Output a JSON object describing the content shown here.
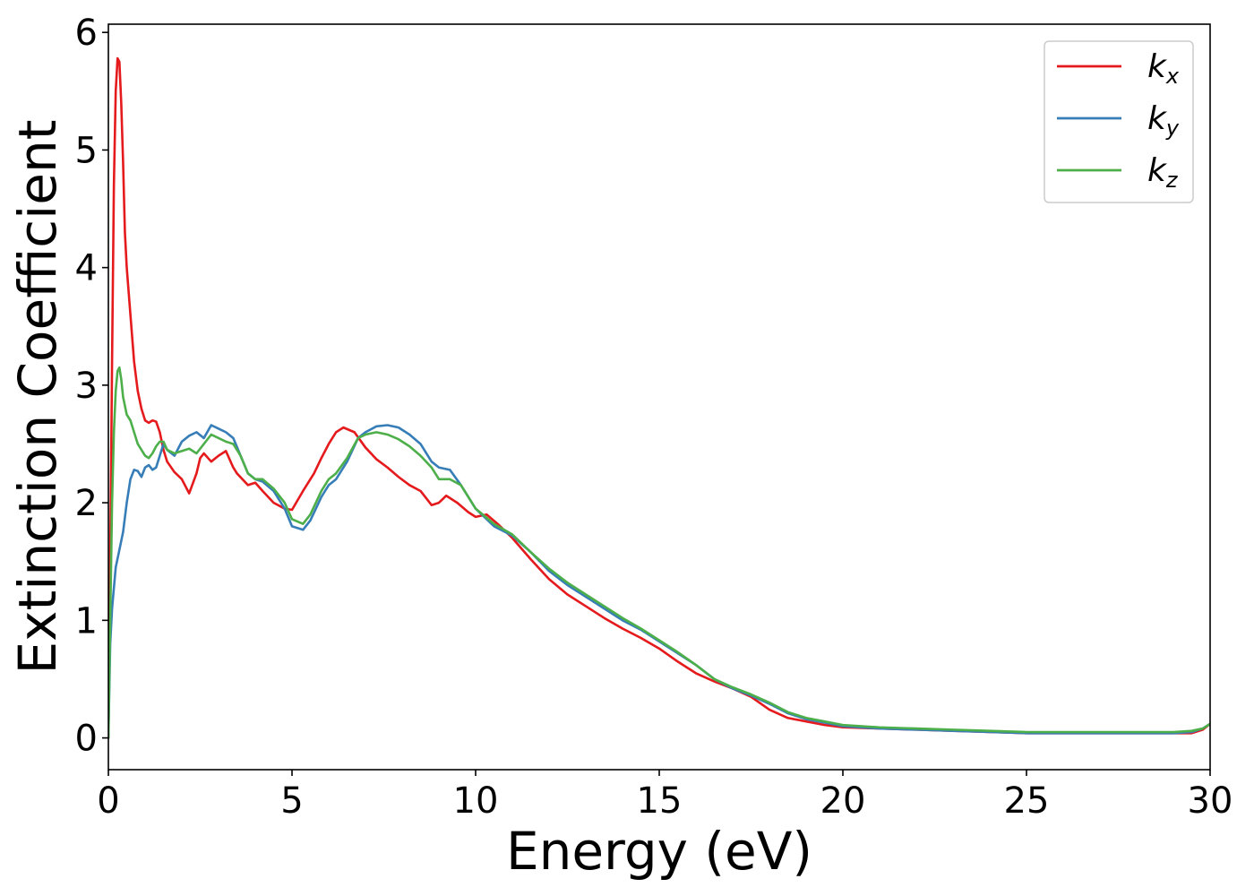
{
  "chart_data": {
    "type": "line",
    "title": "",
    "xlabel": "Energy (eV)",
    "ylabel": "Extinction Coefficient",
    "xlim": [
      0,
      30
    ],
    "ylim": [
      -0.27,
      6.07
    ],
    "xticks": [
      0,
      5,
      10,
      15,
      20,
      25,
      30
    ],
    "yticks": [
      0,
      1,
      2,
      3,
      4,
      5,
      6
    ],
    "grid": false,
    "legend_position": "top-right",
    "series": [
      {
        "name": "k",
        "subscript": "x",
        "color": "#e41a1c",
        "x": [
          0,
          0.05,
          0.1,
          0.15,
          0.2,
          0.25,
          0.3,
          0.35,
          0.4,
          0.45,
          0.5,
          0.6,
          0.7,
          0.8,
          0.9,
          1.0,
          1.1,
          1.2,
          1.3,
          1.4,
          1.5,
          1.6,
          1.8,
          2.0,
          2.2,
          2.4,
          2.5,
          2.6,
          2.8,
          3.0,
          3.2,
          3.4,
          3.5,
          3.8,
          4.0,
          4.2,
          4.5,
          4.8,
          5.0,
          5.3,
          5.6,
          5.8,
          6.0,
          6.2,
          6.4,
          6.7,
          7.0,
          7.3,
          7.6,
          7.9,
          8.2,
          8.5,
          8.8,
          9.0,
          9.2,
          9.5,
          9.8,
          10.0,
          10.3,
          10.6,
          11.0,
          11.5,
          12.0,
          12.5,
          13.0,
          13.5,
          14.0,
          14.5,
          15.0,
          15.5,
          16.0,
          16.5,
          17.0,
          17.5,
          18.0,
          18.5,
          19.0,
          19.5,
          20.0,
          21.0,
          22.0,
          23.0,
          24.0,
          25.0,
          26.0,
          27.0,
          28.0,
          29.0,
          29.5,
          29.8,
          30.0
        ],
        "y": [
          0.0,
          1.5,
          3.2,
          4.7,
          5.5,
          5.78,
          5.75,
          5.4,
          4.9,
          4.3,
          4.0,
          3.6,
          3.2,
          2.95,
          2.8,
          2.7,
          2.68,
          2.7,
          2.69,
          2.6,
          2.45,
          2.35,
          2.26,
          2.2,
          2.08,
          2.25,
          2.38,
          2.42,
          2.35,
          2.4,
          2.44,
          2.3,
          2.25,
          2.15,
          2.17,
          2.1,
          2.0,
          1.95,
          1.94,
          2.1,
          2.25,
          2.38,
          2.5,
          2.6,
          2.64,
          2.6,
          2.47,
          2.37,
          2.3,
          2.22,
          2.15,
          2.1,
          1.98,
          2.0,
          2.06,
          2.0,
          1.92,
          1.88,
          1.9,
          1.82,
          1.7,
          1.52,
          1.35,
          1.22,
          1.12,
          1.02,
          0.93,
          0.85,
          0.76,
          0.65,
          0.55,
          0.48,
          0.42,
          0.35,
          0.24,
          0.17,
          0.14,
          0.11,
          0.09,
          0.08,
          0.07,
          0.06,
          0.05,
          0.04,
          0.04,
          0.04,
          0.04,
          0.04,
          0.04,
          0.07,
          0.12
        ]
      },
      {
        "name": "k",
        "subscript": "y",
        "color": "#377eb8",
        "x": [
          0,
          0.05,
          0.1,
          0.2,
          0.3,
          0.4,
          0.5,
          0.6,
          0.7,
          0.8,
          0.9,
          1.0,
          1.1,
          1.2,
          1.3,
          1.4,
          1.5,
          1.6,
          1.8,
          2.0,
          2.2,
          2.4,
          2.6,
          2.8,
          3.0,
          3.2,
          3.4,
          3.6,
          3.8,
          4.0,
          4.2,
          4.5,
          4.8,
          5.0,
          5.3,
          5.5,
          5.8,
          6.0,
          6.2,
          6.5,
          6.8,
          7.0,
          7.3,
          7.6,
          7.9,
          8.2,
          8.5,
          8.8,
          9.0,
          9.3,
          9.6,
          10.0,
          10.5,
          11.0,
          11.5,
          12.0,
          12.5,
          13.0,
          13.5,
          14.0,
          14.5,
          15.0,
          15.5,
          16.0,
          16.5,
          17.0,
          17.5,
          18.0,
          18.5,
          19.0,
          19.5,
          20.0,
          21.0,
          22.0,
          23.0,
          24.0,
          25.0,
          26.0,
          27.0,
          28.0,
          29.0,
          29.5,
          29.8,
          30.0
        ],
        "y": [
          0.0,
          0.8,
          1.1,
          1.45,
          1.6,
          1.75,
          2.0,
          2.2,
          2.28,
          2.27,
          2.22,
          2.3,
          2.32,
          2.28,
          2.3,
          2.4,
          2.5,
          2.45,
          2.4,
          2.52,
          2.57,
          2.6,
          2.55,
          2.66,
          2.63,
          2.6,
          2.55,
          2.4,
          2.25,
          2.2,
          2.18,
          2.1,
          1.95,
          1.8,
          1.77,
          1.85,
          2.05,
          2.15,
          2.2,
          2.35,
          2.55,
          2.6,
          2.65,
          2.66,
          2.64,
          2.58,
          2.5,
          2.35,
          2.3,
          2.28,
          2.15,
          1.95,
          1.8,
          1.72,
          1.58,
          1.42,
          1.3,
          1.2,
          1.1,
          1.0,
          0.92,
          0.82,
          0.72,
          0.62,
          0.5,
          0.42,
          0.36,
          0.29,
          0.21,
          0.16,
          0.13,
          0.1,
          0.08,
          0.07,
          0.06,
          0.05,
          0.04,
          0.04,
          0.04,
          0.04,
          0.04,
          0.05,
          0.08,
          0.12
        ]
      },
      {
        "name": "k",
        "subscript": "z",
        "color": "#4daf4a",
        "x": [
          0,
          0.05,
          0.1,
          0.15,
          0.2,
          0.25,
          0.3,
          0.35,
          0.4,
          0.5,
          0.6,
          0.7,
          0.8,
          0.9,
          1.0,
          1.1,
          1.2,
          1.3,
          1.4,
          1.5,
          1.6,
          1.8,
          2.0,
          2.2,
          2.4,
          2.6,
          2.8,
          3.0,
          3.2,
          3.4,
          3.6,
          3.8,
          4.0,
          4.2,
          4.5,
          4.8,
          5.0,
          5.3,
          5.5,
          5.8,
          6.0,
          6.2,
          6.5,
          6.8,
          7.0,
          7.3,
          7.6,
          7.9,
          8.2,
          8.5,
          8.8,
          9.0,
          9.3,
          9.6,
          10.0,
          10.5,
          11.0,
          11.5,
          12.0,
          12.5,
          13.0,
          13.5,
          14.0,
          14.5,
          15.0,
          15.5,
          16.0,
          16.5,
          17.0,
          17.5,
          18.0,
          18.5,
          19.0,
          19.5,
          20.0,
          21.0,
          22.0,
          23.0,
          24.0,
          25.0,
          26.0,
          27.0,
          28.0,
          29.0,
          29.5,
          29.8,
          30.0
        ],
        "y": [
          0.0,
          1.0,
          2.0,
          2.6,
          2.95,
          3.12,
          3.15,
          3.05,
          2.9,
          2.75,
          2.7,
          2.6,
          2.5,
          2.45,
          2.4,
          2.38,
          2.42,
          2.48,
          2.52,
          2.52,
          2.45,
          2.42,
          2.44,
          2.46,
          2.42,
          2.5,
          2.58,
          2.55,
          2.52,
          2.5,
          2.4,
          2.25,
          2.2,
          2.2,
          2.12,
          2.0,
          1.86,
          1.82,
          1.9,
          2.1,
          2.2,
          2.25,
          2.38,
          2.55,
          2.58,
          2.6,
          2.58,
          2.54,
          2.48,
          2.4,
          2.3,
          2.2,
          2.2,
          2.15,
          1.95,
          1.82,
          1.73,
          1.58,
          1.44,
          1.32,
          1.22,
          1.12,
          1.02,
          0.93,
          0.83,
          0.73,
          0.62,
          0.5,
          0.43,
          0.37,
          0.3,
          0.22,
          0.17,
          0.14,
          0.11,
          0.09,
          0.08,
          0.07,
          0.06,
          0.05,
          0.05,
          0.05,
          0.05,
          0.05,
          0.06,
          0.08,
          0.12
        ]
      }
    ]
  }
}
